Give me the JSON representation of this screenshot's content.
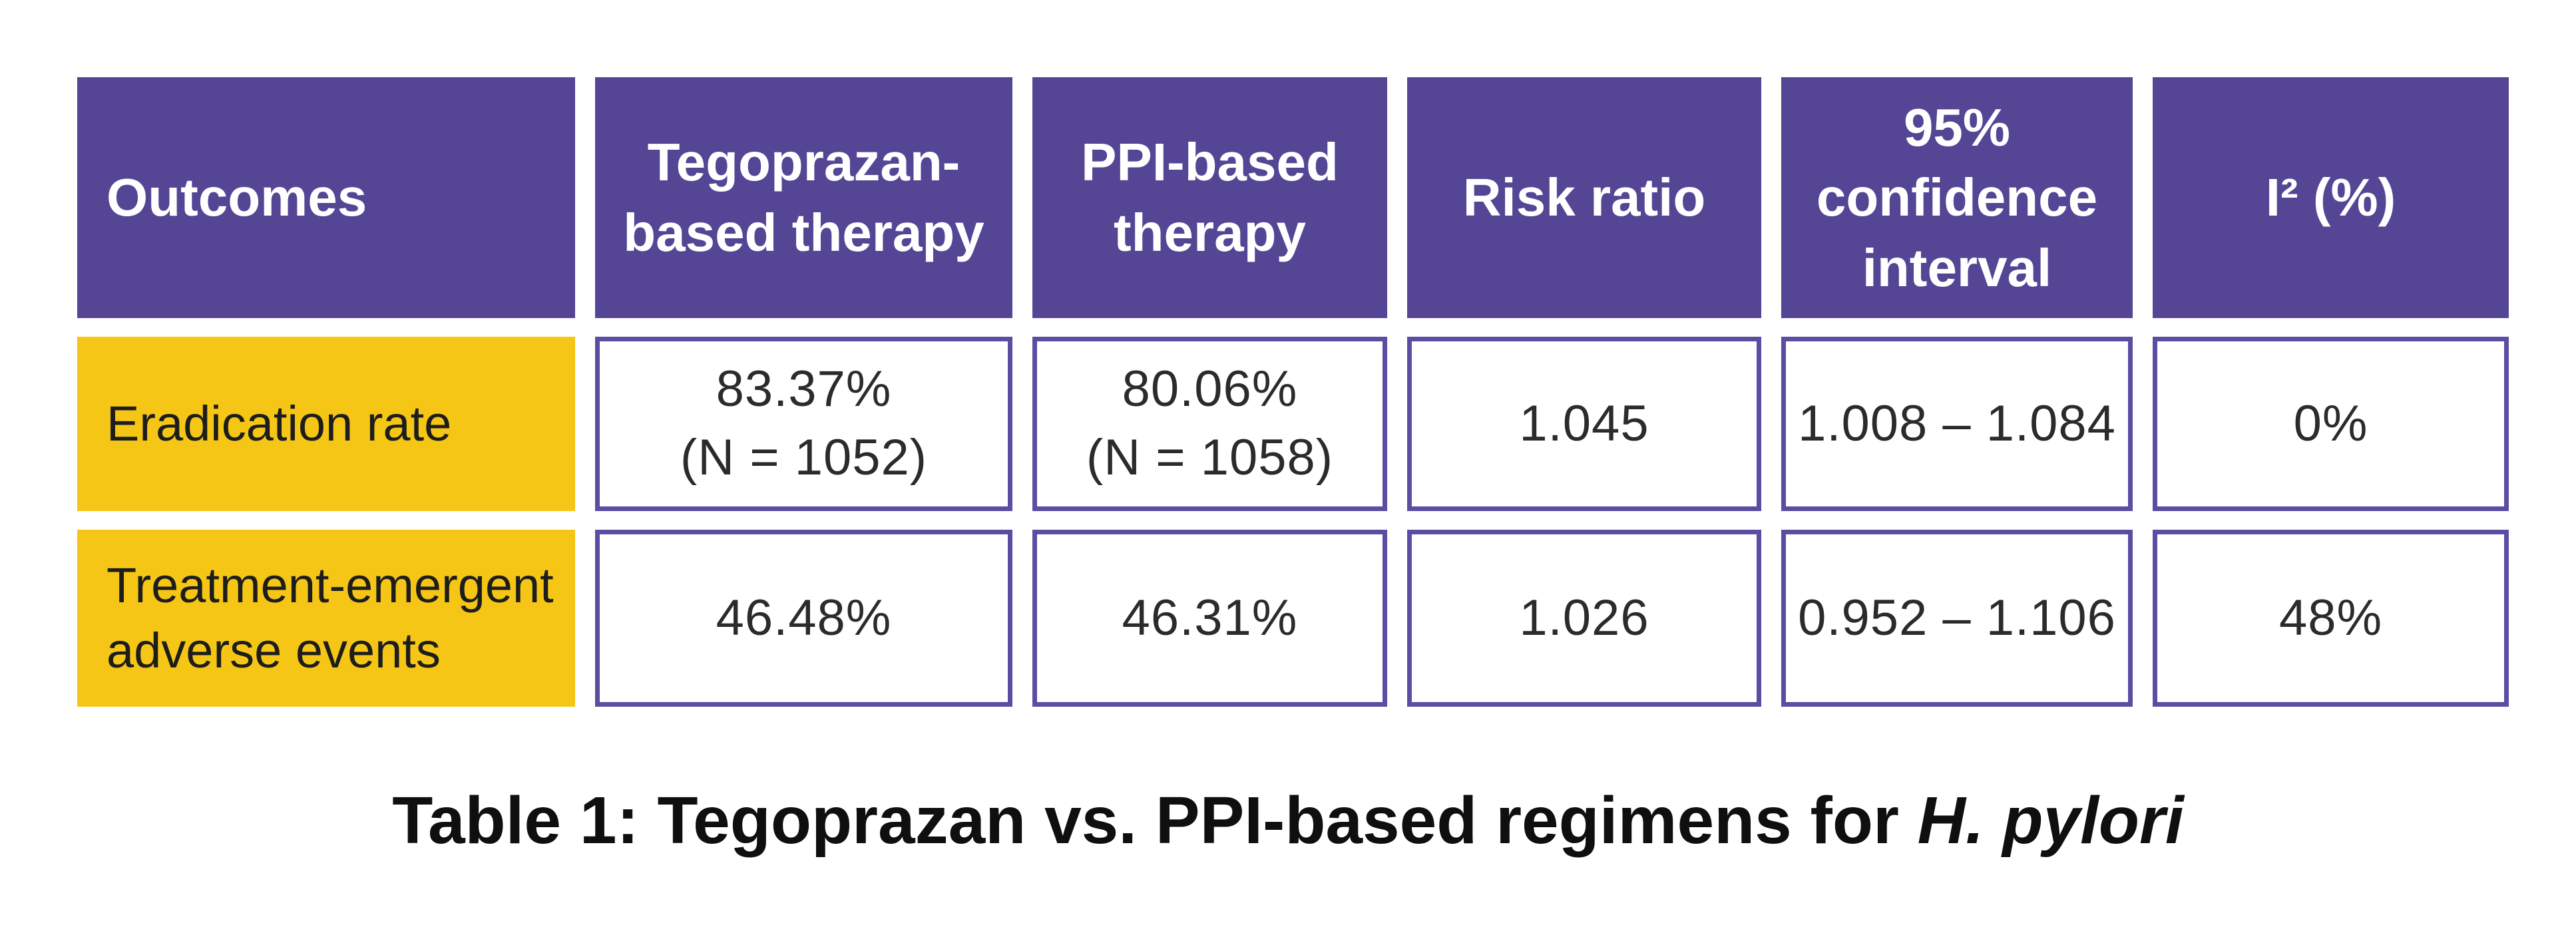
{
  "colors": {
    "purple": "#544695",
    "border_purple": "#5a4da2",
    "yellow": "#f5c616",
    "value_text": "#2b2b2b",
    "label_text": "#1d1d1b",
    "caption_text": "#0f0f0f"
  },
  "table": {
    "headers": [
      {
        "label": "Outcomes"
      },
      {
        "label": "Tegoprazan-based therapy"
      },
      {
        "label": "PPI-based therapy"
      },
      {
        "label": "Risk ratio"
      },
      {
        "label": "95% confidence interval"
      },
      {
        "label": "I² (%)"
      }
    ],
    "rows": [
      {
        "label_lines": [
          "Eradication rate"
        ],
        "values": [
          {
            "line1": "83.37%",
            "line2": "(N = 1052)"
          },
          {
            "line1": "80.06%",
            "line2": "(N = 1058)"
          },
          {
            "line1": "1.045"
          },
          {
            "line1": "1.008 – 1.084"
          },
          {
            "line1": "0%"
          }
        ]
      },
      {
        "label_lines": [
          "Treatment-emergent",
          "adverse events"
        ],
        "values": [
          {
            "line1": "46.48%"
          },
          {
            "line1": "46.31%"
          },
          {
            "line1": "1.026"
          },
          {
            "line1": "0.952 – 1.106"
          },
          {
            "line1": "48%"
          }
        ]
      }
    ]
  },
  "caption": {
    "text": "Table 1: Tegoprazan vs. PPI-based regimens for ",
    "italic": "H. pylori"
  },
  "chart_data": {
    "type": "table",
    "title": "Table 1: Tegoprazan vs. PPI-based regimens for H. pylori",
    "columns": [
      "Outcomes",
      "Tegoprazan-based therapy",
      "PPI-based therapy",
      "Risk ratio",
      "95% confidence interval",
      "I² (%)"
    ],
    "rows": [
      [
        "Eradication rate",
        "83.37% (N = 1052)",
        "80.06% (N = 1058)",
        "1.045",
        "1.008 – 1.084",
        "0%"
      ],
      [
        "Treatment-emergent adverse events",
        "46.48%",
        "46.31%",
        "1.026",
        "0.952 – 1.106",
        "48%"
      ]
    ]
  }
}
